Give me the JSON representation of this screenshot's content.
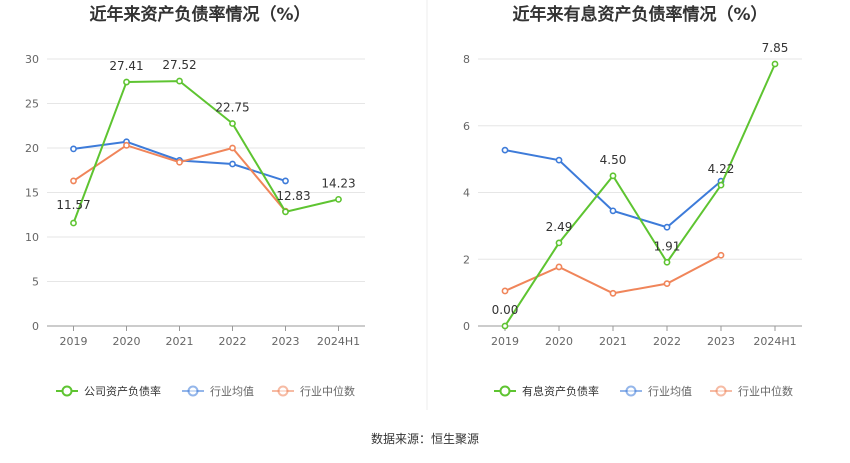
{
  "source_label": "数据来源：恒生聚源",
  "colors": {
    "company": "#5ec431",
    "avg": "#3d7bd9",
    "median": "#f0855a",
    "grid": "#e6e6e6",
    "axis": "#999999"
  },
  "chart_data": [
    {
      "type": "line",
      "title": "近年来资产负债率情况（%）",
      "categories": [
        "2019",
        "2020",
        "2021",
        "2022",
        "2023",
        "2024H1"
      ],
      "ylim": [
        0,
        30
      ],
      "yticks": [
        0,
        5,
        10,
        15,
        20,
        25,
        30
      ],
      "grid": true,
      "legend_position": "bottom",
      "series": [
        {
          "name": "公司资产负债率",
          "key": "company",
          "values": [
            11.57,
            27.41,
            27.52,
            22.75,
            12.83,
            14.23
          ],
          "labels": [
            "11.57",
            "27.41",
            "27.52",
            "22.75",
            "12.83",
            "14.23"
          ]
        },
        {
          "name": "行业均值",
          "key": "avg",
          "values": [
            19.9,
            20.7,
            18.6,
            18.2,
            16.3,
            null
          ]
        },
        {
          "name": "行业中位数",
          "key": "median",
          "values": [
            16.3,
            20.3,
            18.4,
            20.0,
            12.9,
            null
          ]
        }
      ]
    },
    {
      "type": "line",
      "title": "近年来有息资产负债率情况（%）",
      "categories": [
        "2019",
        "2020",
        "2021",
        "2022",
        "2023",
        "2024H1"
      ],
      "ylim": [
        0,
        8
      ],
      "yticks": [
        0,
        2,
        4,
        6,
        8
      ],
      "grid": true,
      "legend_position": "bottom",
      "series": [
        {
          "name": "有息资产负债率",
          "key": "company",
          "values": [
            0.0,
            2.49,
            4.5,
            1.91,
            4.22,
            7.85
          ],
          "labels": [
            "0.00",
            "2.49",
            "4.50",
            "1.91",
            "4.22",
            "7.85"
          ]
        },
        {
          "name": "行业均值",
          "key": "avg",
          "values": [
            5.27,
            4.97,
            3.45,
            2.96,
            4.34,
            null
          ]
        },
        {
          "name": "行业中位数",
          "key": "median",
          "values": [
            1.05,
            1.77,
            0.98,
            1.27,
            2.12,
            null
          ]
        }
      ]
    }
  ]
}
